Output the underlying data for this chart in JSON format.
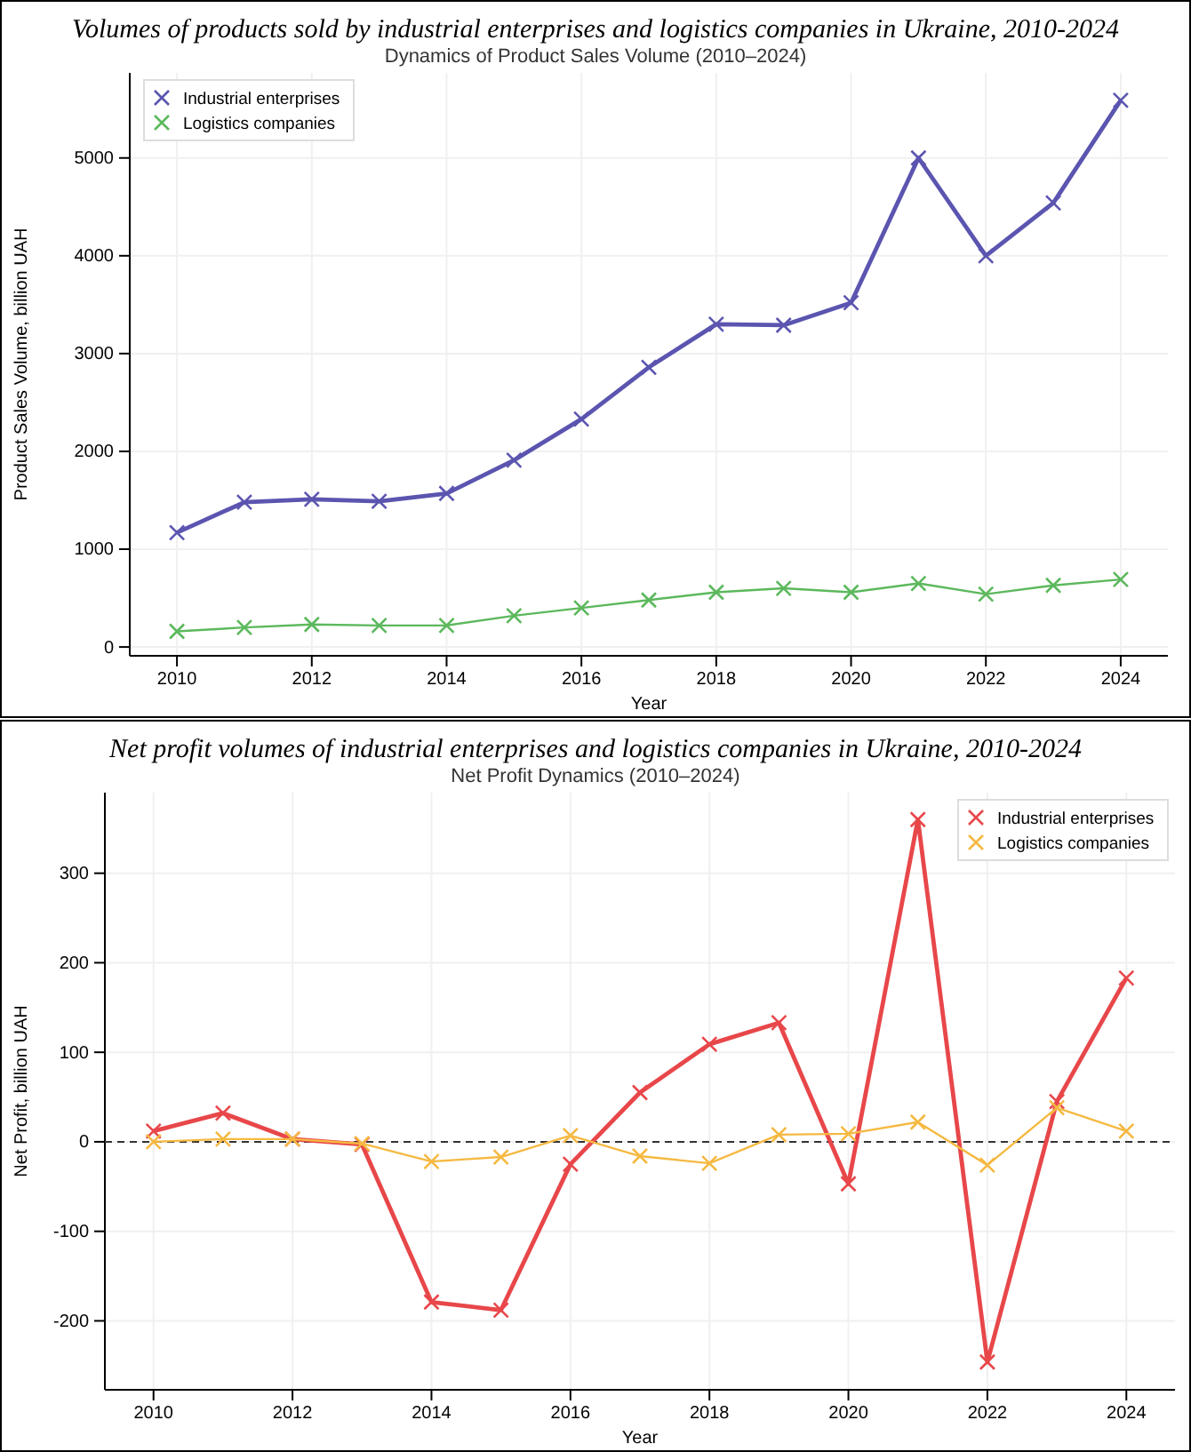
{
  "chart_data": [
    {
      "type": "line",
      "title": "Volumes of products sold by industrial enterprises and logistics companies in Ukraine, 2010-2024",
      "subtitle": "Dynamics of Product Sales Volume (2010–2024)",
      "xlabel": "Year",
      "ylabel": "Product Sales Volume, billion UAH",
      "x": [
        2010,
        2011,
        2012,
        2013,
        2014,
        2015,
        2016,
        2017,
        2018,
        2019,
        2020,
        2021,
        2022,
        2023,
        2024
      ],
      "series": [
        {
          "name": "Industrial enterprises",
          "color": "#5b55b0",
          "values": [
            1170,
            1480,
            1510,
            1490,
            1570,
            1910,
            2330,
            2860,
            3300,
            3290,
            3520,
            5000,
            4000,
            4540,
            5590
          ]
        },
        {
          "name": "Logistics companies",
          "color": "#5cb85c",
          "values": [
            160,
            200,
            230,
            220,
            220,
            320,
            400,
            480,
            560,
            600,
            560,
            650,
            540,
            630,
            690
          ]
        }
      ],
      "xlim": [
        2009.3,
        2024.7
      ],
      "xticks": [
        2010,
        2012,
        2014,
        2016,
        2018,
        2020,
        2022,
        2024
      ],
      "ylim": [
        -90,
        5870
      ],
      "yticks": [
        0,
        1000,
        2000,
        3000,
        4000,
        5000
      ],
      "grid": true,
      "legend": "top left",
      "marker": "cross",
      "line_style": "solid"
    },
    {
      "type": "line",
      "title": "Net profit volumes of industrial enterprises and logistics companies in Ukraine, 2010-2024",
      "subtitle": "Net Profit Dynamics (2010–2024)",
      "xlabel": "Year",
      "ylabel": "Net Profit, billion UAH",
      "x": [
        2010,
        2011,
        2012,
        2013,
        2014,
        2015,
        2016,
        2017,
        2018,
        2019,
        2020,
        2021,
        2022,
        2023,
        2024
      ],
      "series": [
        {
          "name": "Industrial enterprises",
          "color": "#e8474a",
          "values": [
            12,
            32,
            3,
            -3,
            -179,
            -188,
            -25,
            55,
            109,
            133,
            -47,
            360,
            -246,
            45,
            183
          ]
        },
        {
          "name": "Logistics companies",
          "color": "#f5b942",
          "values": [
            0,
            3,
            3,
            -2,
            -22,
            -17,
            7,
            -16,
            -24,
            8,
            9,
            22,
            -26,
            38,
            12
          ]
        }
      ],
      "xlim": [
        2009.3,
        2024.7
      ],
      "xticks": [
        2010,
        2012,
        2014,
        2016,
        2018,
        2020,
        2022,
        2024
      ],
      "ylim": [
        -277,
        390
      ],
      "yticks": [
        -200,
        -100,
        0,
        100,
        200,
        300
      ],
      "ref_lines": [
        {
          "axis": "y",
          "value": 0,
          "color": "#333333",
          "line_style": "dashed"
        }
      ],
      "grid": true,
      "legend": "top right",
      "marker": "cross",
      "line_style": "solid"
    }
  ]
}
